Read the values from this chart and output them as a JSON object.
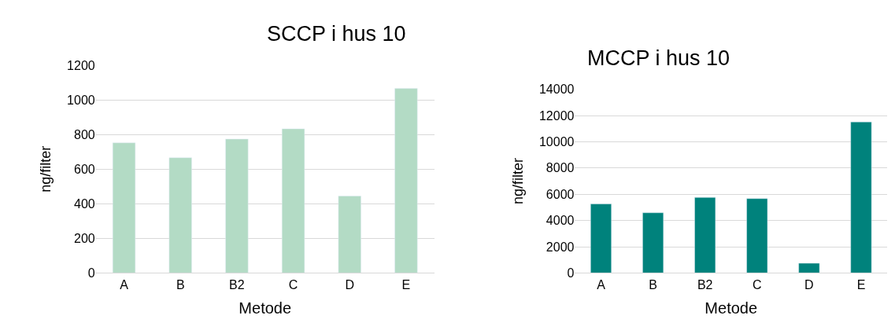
{
  "chart_data": [
    {
      "type": "bar",
      "title": "SCCP i hus 10",
      "xlabel": "Metode",
      "ylabel": "ng/filter",
      "categories": [
        "A",
        "B",
        "B2",
        "C",
        "D",
        "E"
      ],
      "values": [
        752,
        666,
        774,
        833,
        445,
        1066
      ],
      "color": "#b3dbc5",
      "ylim": [
        0,
        1200
      ],
      "yticks": [
        0,
        200,
        400,
        600,
        800,
        1000,
        1200
      ],
      "grid": "y"
    },
    {
      "type": "bar",
      "title": "MCCP i hus 10",
      "xlabel": "Metode",
      "ylabel": "ng/filter",
      "categories": [
        "A",
        "B",
        "B2",
        "C",
        "D",
        "E"
      ],
      "values": [
        5260,
        4590,
        5760,
        5670,
        740,
        11520
      ],
      "color": "#00827c",
      "ylim": [
        0,
        14000
      ],
      "yticks": [
        0,
        2000,
        4000,
        6000,
        8000,
        10000,
        12000,
        14000
      ],
      "grid": "y"
    }
  ]
}
